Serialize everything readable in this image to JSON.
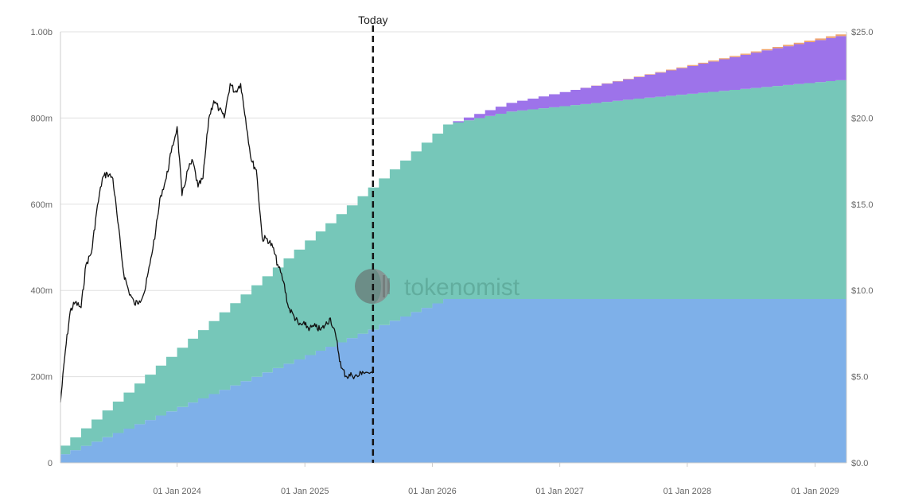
{
  "watermark": {
    "brand": "tokenomist"
  },
  "today_label": "Today",
  "colors": {
    "unlock_a": "#7eb0e9",
    "unlock_b": "#76c7b9",
    "unlock_c": "#9d73ea",
    "unlock_d": "#f0a56f",
    "price_line": "#111111",
    "grid": "#e0e0e0",
    "axis_text": "#666666"
  },
  "chart_data": {
    "type": "area",
    "stacked": true,
    "step": "monthly",
    "title": "",
    "left_axis": {
      "min": 0,
      "max": 1000000000,
      "ticks": [
        0,
        200000000,
        400000000,
        600000000,
        800000000,
        1000000000
      ],
      "tick_labels": [
        "0",
        "200m",
        "400m",
        "600m",
        "800m",
        "1.00b"
      ]
    },
    "right_axis": {
      "min": 0,
      "max": 25,
      "ticks": [
        0,
        5,
        10,
        15,
        20,
        25
      ],
      "tick_labels": [
        "$0.0",
        "$5.0",
        "$10.0",
        "$15.0",
        "$20.0",
        "$25.0"
      ]
    },
    "x_axis": {
      "start": "2023-02-01",
      "end": "2029-04-01",
      "tick_dates": [
        "2024-01-01",
        "2025-01-01",
        "2026-01-01",
        "2027-01-01",
        "2028-01-01",
        "2029-01-01"
      ],
      "tick_labels": [
        "01 Jan 2024",
        "01 Jan 2025",
        "01 Jan 2026",
        "01 Jan 2027",
        "01 Jan 2028",
        "01 Jan 2029"
      ]
    },
    "grid": true,
    "today": "2025-07-15",
    "series": [
      {
        "color": "#7eb0e9",
        "points": [
          [
            "2023-02-01",
            20000000
          ],
          [
            "2026-02-01",
            380000000
          ],
          [
            "2029-04-01",
            380000000
          ]
        ]
      },
      {
        "color": "#76c7b9",
        "points": [
          [
            "2023-02-01",
            20000000
          ],
          [
            "2026-02-01",
            405000000
          ],
          [
            "2026-08-01",
            435000000
          ],
          [
            "2027-08-01",
            465000000
          ],
          [
            "2028-08-01",
            492000000
          ],
          [
            "2029-04-01",
            510000000
          ]
        ]
      },
      {
        "color": "#9d73ea",
        "points": [
          [
            "2023-02-01",
            0
          ],
          [
            "2026-02-01",
            0
          ],
          [
            "2026-08-01",
            20000000
          ],
          [
            "2027-08-01",
            50000000
          ],
          [
            "2028-08-01",
            85000000
          ],
          [
            "2029-04-01",
            105000000
          ]
        ]
      },
      {
        "color": "#f0a56f",
        "points": [
          [
            "2023-02-01",
            0
          ],
          [
            "2027-01-01",
            0
          ],
          [
            "2028-01-01",
            2000000
          ],
          [
            "2029-04-01",
            4000000
          ]
        ]
      }
    ],
    "price_series": {
      "axis": "right",
      "color": "#111111",
      "points": [
        [
          "2023-02-01",
          3.5
        ],
        [
          "2023-02-15",
          6.5
        ],
        [
          "2023-03-01",
          8.8
        ],
        [
          "2023-03-15",
          9.3
        ],
        [
          "2023-04-01",
          9.0
        ],
        [
          "2023-04-15",
          11.5
        ],
        [
          "2023-05-01",
          12.2
        ],
        [
          "2023-05-15",
          14.5
        ],
        [
          "2023-06-01",
          16.5
        ],
        [
          "2023-06-15",
          16.8
        ],
        [
          "2023-07-01",
          16.5
        ],
        [
          "2023-07-15",
          14.0
        ],
        [
          "2023-08-01",
          11.0
        ],
        [
          "2023-08-15",
          10.0
        ],
        [
          "2023-09-01",
          9.2
        ],
        [
          "2023-09-15",
          9.4
        ],
        [
          "2023-10-01",
          10.0
        ],
        [
          "2023-10-15",
          11.5
        ],
        [
          "2023-11-01",
          13.5
        ],
        [
          "2023-11-15",
          15.5
        ],
        [
          "2023-12-01",
          16.5
        ],
        [
          "2023-12-15",
          18.0
        ],
        [
          "2024-01-01",
          19.5
        ],
        [
          "2024-01-15",
          15.5
        ],
        [
          "2024-02-01",
          17.0
        ],
        [
          "2024-02-15",
          17.5
        ],
        [
          "2024-03-01",
          16.0
        ],
        [
          "2024-03-15",
          16.5
        ],
        [
          "2024-04-01",
          20.0
        ],
        [
          "2024-04-15",
          21.0
        ],
        [
          "2024-05-01",
          20.5
        ],
        [
          "2024-05-15",
          20.0
        ],
        [
          "2024-06-01",
          22.0
        ],
        [
          "2024-06-15",
          21.5
        ],
        [
          "2024-07-01",
          22.0
        ],
        [
          "2024-07-15",
          20.0
        ],
        [
          "2024-08-01",
          17.5
        ],
        [
          "2024-08-15",
          17.0
        ],
        [
          "2024-09-01",
          13.0
        ],
        [
          "2024-09-15",
          13.0
        ],
        [
          "2024-10-01",
          12.5
        ],
        [
          "2024-10-15",
          11.5
        ],
        [
          "2024-11-01",
          10.5
        ],
        [
          "2024-11-15",
          9.0
        ],
        [
          "2024-12-01",
          8.5
        ],
        [
          "2024-12-15",
          8.0
        ],
        [
          "2025-01-01",
          8.0
        ],
        [
          "2025-01-15",
          7.8
        ],
        [
          "2025-02-01",
          7.9
        ],
        [
          "2025-02-15",
          7.7
        ],
        [
          "2025-03-01",
          8.0
        ],
        [
          "2025-03-15",
          8.4
        ],
        [
          "2025-04-01",
          7.2
        ],
        [
          "2025-04-15",
          5.5
        ],
        [
          "2025-05-01",
          5.0
        ],
        [
          "2025-05-15",
          5.1
        ],
        [
          "2025-06-01",
          5.0
        ],
        [
          "2025-06-15",
          5.3
        ],
        [
          "2025-07-15",
          5.2
        ]
      ]
    }
  }
}
